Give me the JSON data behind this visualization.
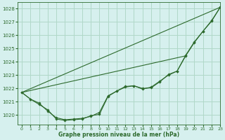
{
  "title": "Graphe pression niveau de la mer (hPa)",
  "background_color": "#d6f0ee",
  "grid_color": "#b0d8c8",
  "line_color": "#2d6a2d",
  "xlim": [
    -0.5,
    23
  ],
  "ylim": [
    1019.3,
    1028.5
  ],
  "yticks": [
    1020,
    1021,
    1022,
    1023,
    1024,
    1025,
    1026,
    1027,
    1028
  ],
  "xticks": [
    0,
    1,
    2,
    3,
    4,
    5,
    6,
    7,
    8,
    9,
    10,
    11,
    12,
    13,
    14,
    15,
    16,
    17,
    18,
    19,
    20,
    21,
    22,
    23
  ],
  "series_with_markers": [
    [
      1021.7,
      1021.2,
      1020.9,
      1020.3,
      1019.8,
      1019.65,
      1019.7,
      1019.75,
      1019.9,
      1020.2,
      1021.45,
      1021.8,
      1022.1,
      1022.2,
      1022.0,
      1022.05,
      1022.5,
      1023.05,
      1023.3,
      1024.5,
      1025.5,
      1026.3,
      1027.1,
      1028.1
    ],
    [
      1021.7,
      1021.2,
      1020.8,
      1020.4,
      1019.7,
      1019.6,
      1019.65,
      1019.7,
      1019.95,
      1020.05,
      1021.4,
      1021.8,
      1022.15,
      1022.2,
      1021.95,
      1022.1,
      1022.55,
      1023.0,
      1023.3,
      1024.45,
      1025.45,
      1026.3,
      1027.05,
      1028.1
    ]
  ],
  "series_straight": [
    [
      [
        0,
        1021.7
      ],
      [
        23,
        1028.1
      ]
    ],
    [
      [
        0,
        1021.7
      ],
      [
        19,
        1024.45
      ]
    ]
  ]
}
